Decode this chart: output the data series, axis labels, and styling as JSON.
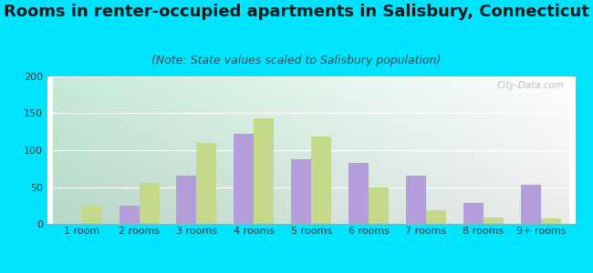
{
  "title": "Rooms in renter-occupied apartments in Salisbury, Connecticut",
  "subtitle": "(Note: State values scaled to Salisbury population)",
  "categories": [
    "1 room",
    "2 rooms",
    "3 rooms",
    "4 rooms",
    "5 rooms",
    "6 rooms",
    "7 rooms",
    "8 rooms",
    "9+ rooms"
  ],
  "salisbury_values": [
    0,
    25,
    65,
    122,
    88,
    83,
    65,
    29,
    53
  ],
  "connecticut_values": [
    25,
    55,
    110,
    143,
    118,
    49,
    19,
    9,
    7
  ],
  "salisbury_color": "#b39ddb",
  "connecticut_color": "#c5d98a",
  "background_color": "#00e5ff",
  "ylim": [
    0,
    200
  ],
  "yticks": [
    0,
    50,
    100,
    150,
    200
  ],
  "title_fontsize": 13,
  "subtitle_fontsize": 9,
  "tick_fontsize": 8,
  "legend_fontsize": 10,
  "watermark": "City-Data.com"
}
